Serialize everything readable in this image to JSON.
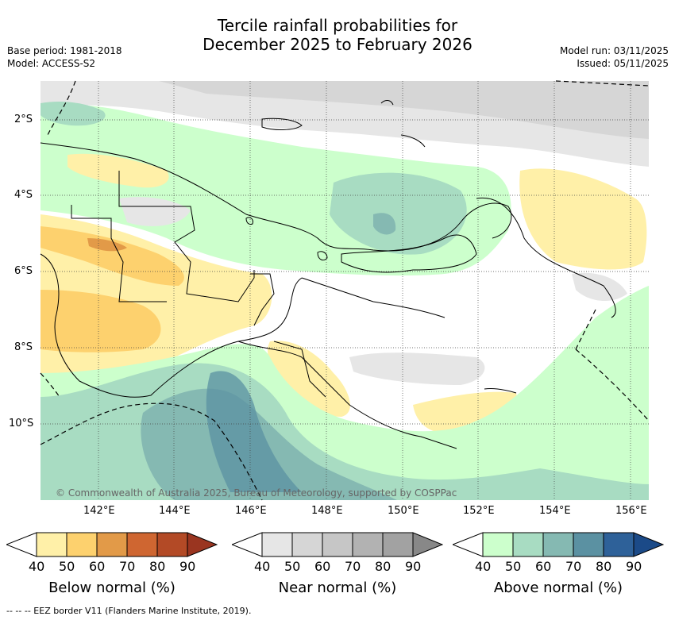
{
  "title": {
    "line1": "Tercile rainfall probabilities for",
    "line2": "December 2025 to February 2026"
  },
  "metadata": {
    "base_period": "Base period: 1981-2018",
    "model": "Model: ACCESS-S2",
    "model_run": "Model run: 03/11/2025",
    "issued": "Issued: 05/11/2025"
  },
  "map": {
    "longitude_labels": [
      "142°E",
      "144°E",
      "146°E",
      "148°E",
      "150°E",
      "152°E",
      "154°E",
      "156°E"
    ],
    "latitude_labels": [
      "2°S",
      "4°S",
      "6°S",
      "8°S",
      "10°S"
    ],
    "copyright": "© Commonwealth of Australia 2025, Bureau of Meteorology, supported by COSPPac"
  },
  "legend": {
    "below": {
      "label": "Below normal (%)",
      "ticks": [
        "40",
        "50",
        "60",
        "70",
        "80",
        "90"
      ],
      "colors": [
        "#fff0a8",
        "#fdd16e",
        "#e29a48",
        "#cf6631",
        "#b34a26",
        "#9a3520"
      ]
    },
    "near": {
      "label": "Near normal (%)",
      "ticks": [
        "40",
        "50",
        "60",
        "70",
        "80",
        "90"
      ],
      "colors": [
        "#e6e6e6",
        "#d6d6d6",
        "#c6c6c6",
        "#b2b2b2",
        "#a2a2a2",
        "#888888"
      ]
    },
    "above": {
      "label": "Above normal (%)",
      "ticks": [
        "40",
        "50",
        "60",
        "70",
        "80",
        "90"
      ],
      "colors": [
        "#ccffcc",
        "#a8dcc2",
        "#85b9b2",
        "#5b91a2",
        "#2e6199",
        "#1b4a88"
      ]
    }
  },
  "footer": "--  --  -- EEZ border V11 (Flanders Marine Institute, 2019)."
}
